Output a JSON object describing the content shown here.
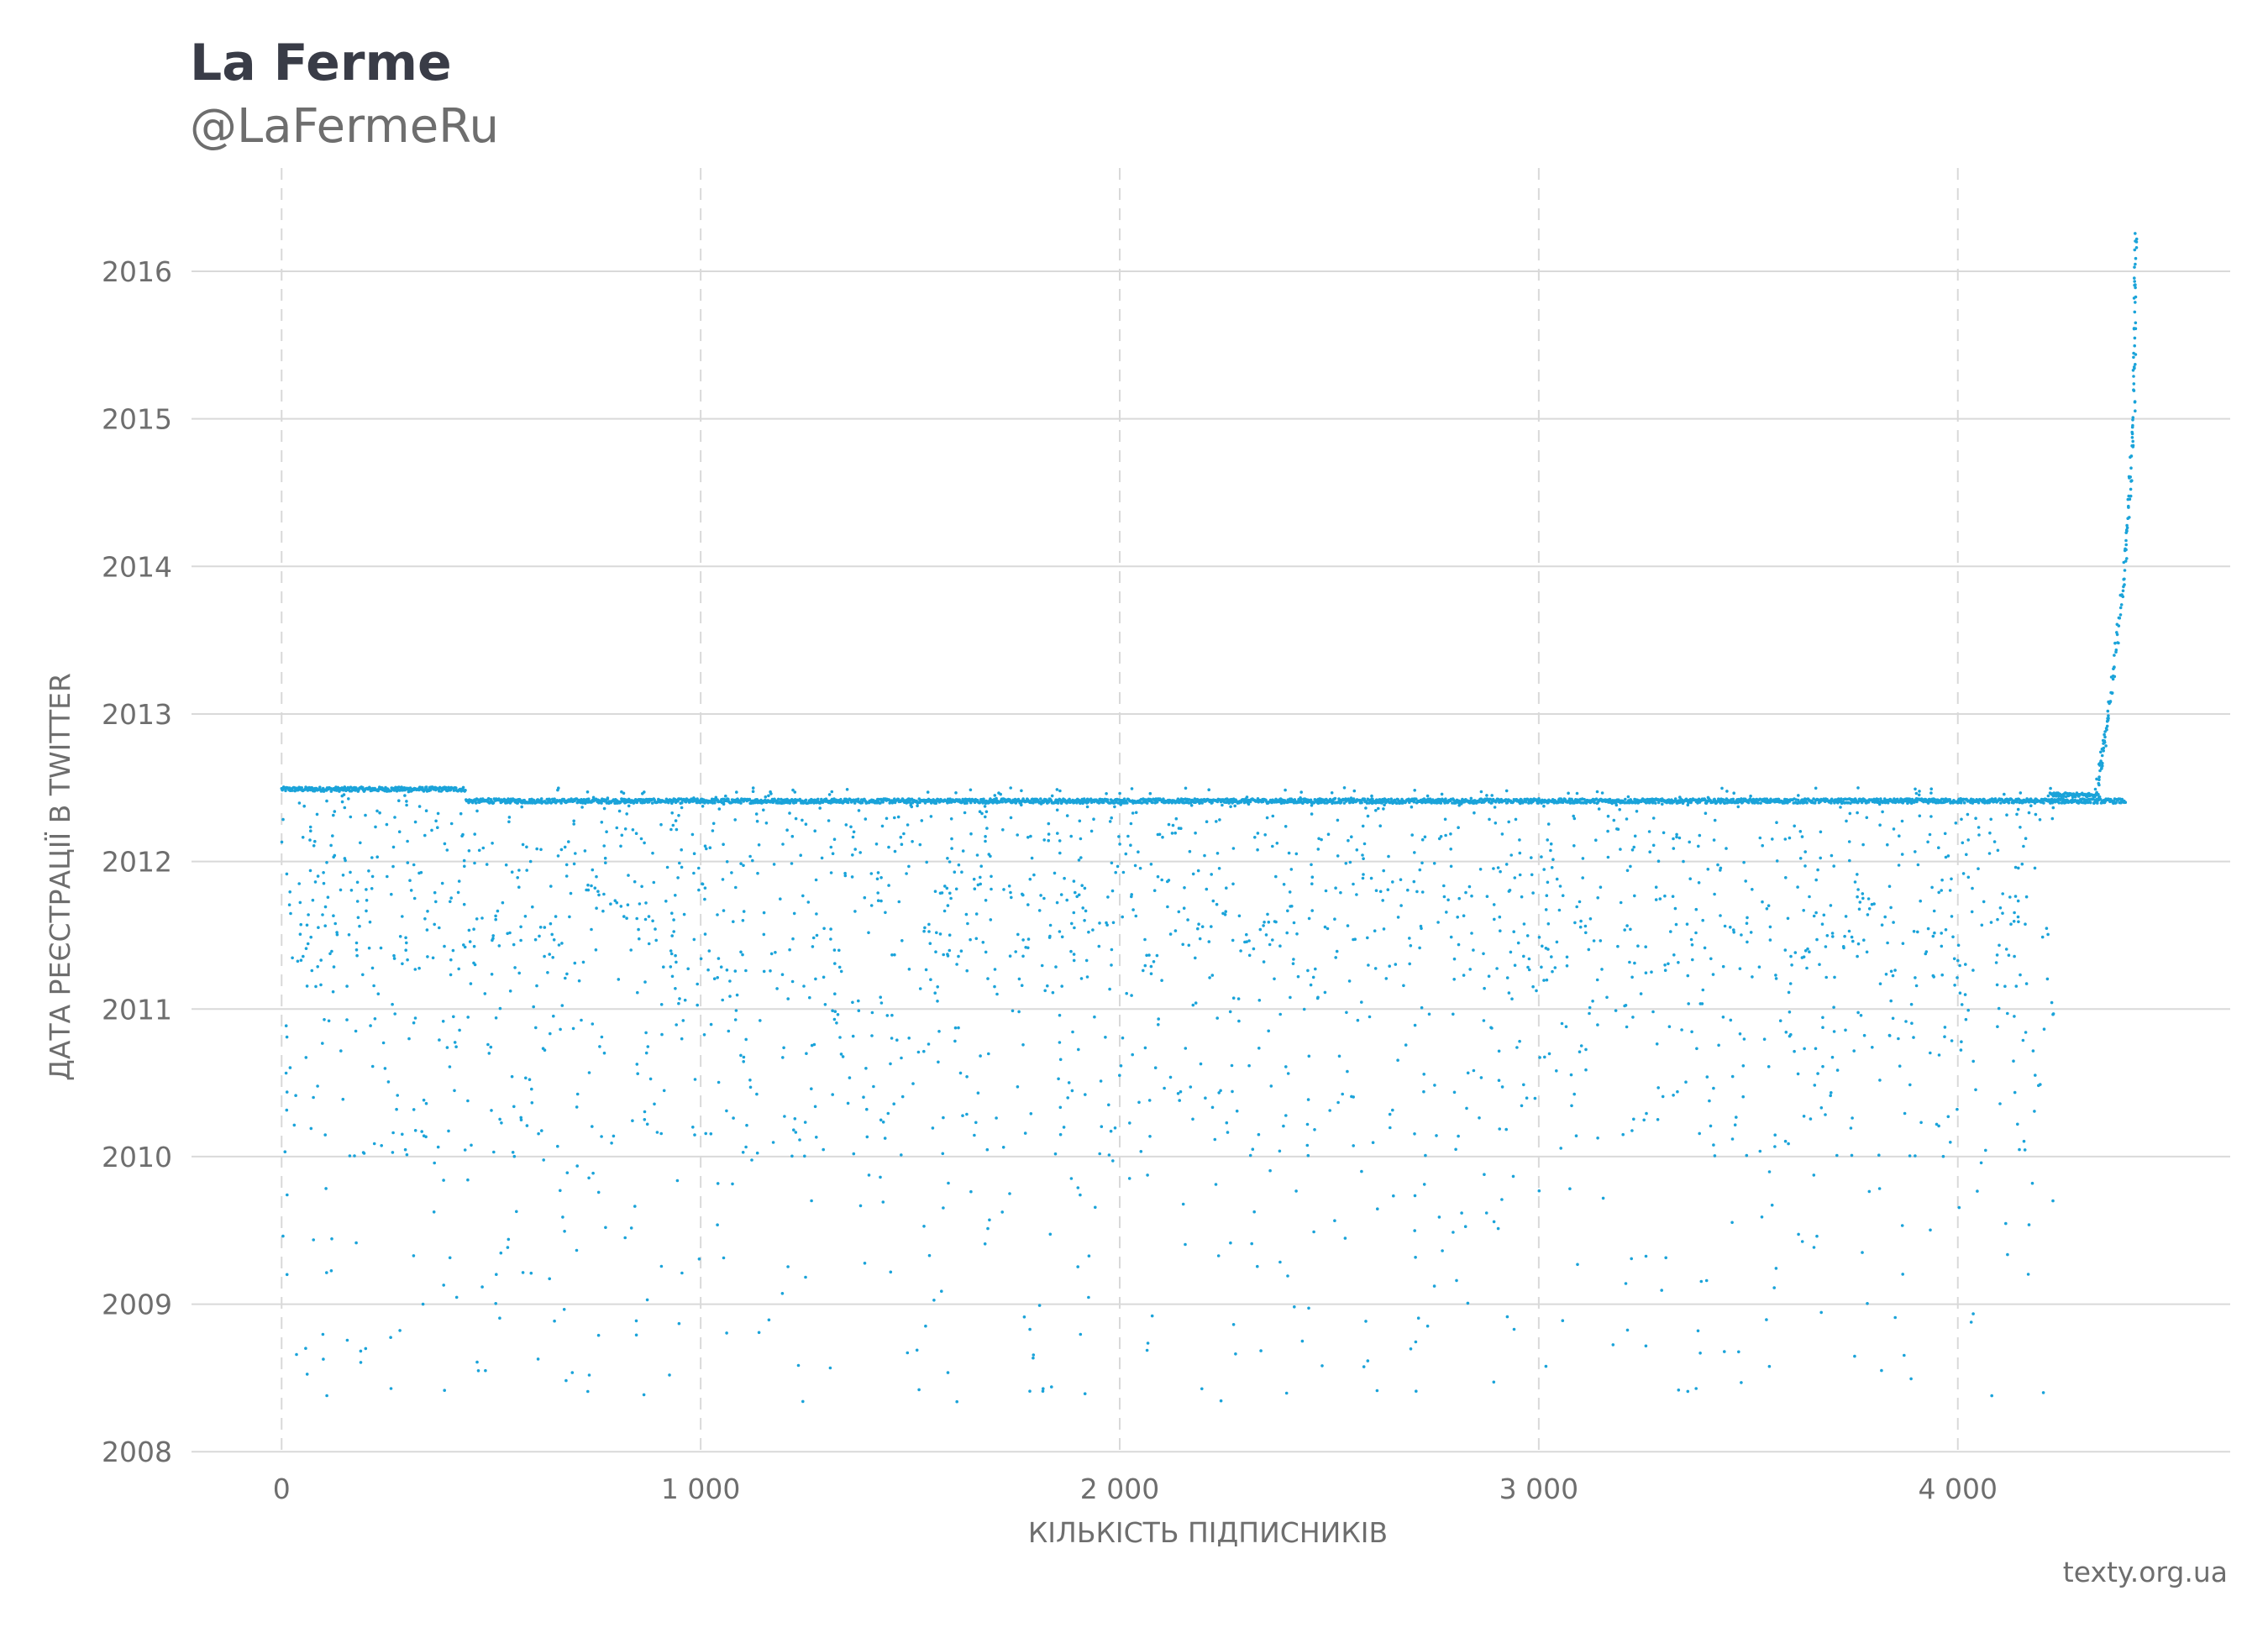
{
  "header": {
    "title": "La Ferme",
    "subtitle": "@LaFermeRu"
  },
  "footer": {
    "source": "texty.org.ua"
  },
  "chart_data": {
    "type": "scatter",
    "xlabel": "КІЛЬКІСТЬ ПІДПИСНИКІВ",
    "ylabel": "ДАТА РЕЄСТРАЦІЇ В TWITTER",
    "xlim": [
      -215,
      4650
    ],
    "ylim": [
      2007.99,
      2016.7
    ],
    "x_ticks": [
      0,
      1000,
      2000,
      3000,
      4000
    ],
    "x_tick_labels": [
      "0",
      "1 000",
      "2 000",
      "3 000",
      "4 000"
    ],
    "y_ticks": [
      2008,
      2009,
      2010,
      2011,
      2012,
      2013,
      2014,
      2015,
      2016
    ],
    "y_tick_labels": [
      "2008",
      "2009",
      "2010",
      "2011",
      "2012",
      "2013",
      "2014",
      "2015",
      "2016"
    ],
    "grid": {
      "x": "dashed",
      "y": "solid"
    },
    "point_color": "#1aa3d9",
    "n_points": 4420,
    "dense_bands": [
      {
        "x_range": [
          0,
          440
        ],
        "y": 2012.49
      },
      {
        "x_range": [
          440,
          4400
        ],
        "y": 2012.41
      },
      {
        "x_range": [
          4220,
          4340
        ],
        "y": 2012.45
      }
    ],
    "scatter_range": {
      "x": [
        0,
        4230
      ],
      "y": [
        2008.33,
        2012.5
      ]
    },
    "tail_trend": [
      {
        "x": 4330,
        "y": 2012.45
      },
      {
        "x": 4360,
        "y": 2013.0
      },
      {
        "x": 4400,
        "y": 2014.0
      },
      {
        "x": 4420,
        "y": 2015.0
      },
      {
        "x": 4425,
        "y": 2016.32
      }
    ]
  }
}
